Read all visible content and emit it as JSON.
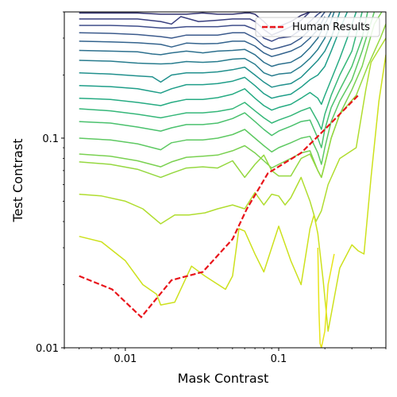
{
  "chart_data": {
    "type": "line",
    "title": "",
    "xlabel": "Mask Contrast",
    "ylabel": "Test Contrast",
    "xscale": "log",
    "yscale": "log",
    "xlim": [
      0.004,
      0.5
    ],
    "ylim": [
      0.01,
      0.4
    ],
    "x_ticks": [
      0.01,
      0.1
    ],
    "x_tick_labels": [
      "0.01",
      "0.1"
    ],
    "y_ticks": [
      0.01,
      0.1
    ],
    "y_tick_labels": [
      "0.01",
      "0.1"
    ],
    "legend": {
      "position": "top-right",
      "entries": [
        "Human Results"
      ]
    },
    "grid": false,
    "human_results": {
      "name": "Human Results",
      "color": "#e8141a",
      "style": "dashed",
      "x": [
        0.005,
        0.0082,
        0.0127,
        0.02,
        0.032,
        0.05,
        0.062,
        0.085,
        0.14,
        0.2,
        0.33
      ],
      "y": [
        0.022,
        0.019,
        0.014,
        0.021,
        0.023,
        0.033,
        0.046,
        0.068,
        0.085,
        0.11,
        0.16
      ]
    },
    "contours": [
      {
        "color": "#30306e",
        "x": [
          0.005,
          0.008,
          0.012,
          0.017,
          0.02,
          0.025,
          0.032,
          0.04,
          0.05,
          0.06,
          0.065,
          0.07,
          0.08,
          0.09,
          0.1,
          0.12,
          0.14,
          0.16,
          0.18
        ],
        "y": [
          0.395,
          0.395,
          0.395,
          0.39,
          0.39,
          0.39,
          0.395,
          0.39,
          0.39,
          0.395,
          0.395,
          0.39,
          0.36,
          0.33,
          0.34,
          0.36,
          0.385,
          0.4,
          0.4
        ]
      },
      {
        "color": "#393f7f",
        "x": [
          0.005,
          0.008,
          0.012,
          0.017,
          0.02,
          0.023,
          0.03,
          0.04,
          0.05,
          0.06,
          0.065,
          0.07,
          0.08,
          0.09,
          0.1,
          0.12,
          0.14,
          0.16,
          0.18
        ],
        "y": [
          0.37,
          0.37,
          0.37,
          0.36,
          0.35,
          0.38,
          0.36,
          0.365,
          0.37,
          0.37,
          0.37,
          0.36,
          0.33,
          0.31,
          0.32,
          0.34,
          0.365,
          0.4,
          0.4
        ]
      },
      {
        "color": "#3e4d8a",
        "x": [
          0.005,
          0.008,
          0.012,
          0.017,
          0.02,
          0.025,
          0.032,
          0.04,
          0.05,
          0.06,
          0.07,
          0.08,
          0.09,
          0.1,
          0.12,
          0.14,
          0.16,
          0.18,
          0.19
        ],
        "y": [
          0.345,
          0.345,
          0.342,
          0.335,
          0.335,
          0.34,
          0.34,
          0.34,
          0.345,
          0.345,
          0.33,
          0.3,
          0.29,
          0.3,
          0.305,
          0.33,
          0.36,
          0.39,
          0.4
        ]
      },
      {
        "color": "#3b5a8c",
        "x": [
          0.005,
          0.008,
          0.012,
          0.017,
          0.02,
          0.025,
          0.032,
          0.04,
          0.05,
          0.06,
          0.07,
          0.08,
          0.09,
          0.1,
          0.12,
          0.14,
          0.16,
          0.18,
          0.2
        ],
        "y": [
          0.318,
          0.316,
          0.312,
          0.305,
          0.3,
          0.31,
          0.31,
          0.31,
          0.318,
          0.318,
          0.3,
          0.275,
          0.265,
          0.27,
          0.28,
          0.3,
          0.33,
          0.36,
          0.4
        ]
      },
      {
        "color": "#33638d",
        "x": [
          0.005,
          0.008,
          0.012,
          0.017,
          0.02,
          0.025,
          0.032,
          0.04,
          0.05,
          0.06,
          0.07,
          0.08,
          0.09,
          0.1,
          0.12,
          0.14,
          0.16,
          0.18,
          0.2
        ],
        "y": [
          0.29,
          0.288,
          0.285,
          0.28,
          0.272,
          0.284,
          0.282,
          0.283,
          0.29,
          0.29,
          0.275,
          0.255,
          0.245,
          0.25,
          0.26,
          0.275,
          0.3,
          0.33,
          0.38
        ]
      },
      {
        "color": "#2d708e",
        "x": [
          0.005,
          0.008,
          0.012,
          0.015,
          0.017,
          0.02,
          0.025,
          0.032,
          0.04,
          0.05,
          0.06,
          0.07,
          0.08,
          0.09,
          0.1,
          0.12,
          0.14,
          0.16,
          0.18,
          0.2,
          0.22
        ],
        "y": [
          0.262,
          0.26,
          0.258,
          0.252,
          0.25,
          0.255,
          0.26,
          0.255,
          0.26,
          0.262,
          0.265,
          0.25,
          0.23,
          0.22,
          0.225,
          0.23,
          0.245,
          0.27,
          0.3,
          0.35,
          0.4
        ]
      },
      {
        "color": "#287c8e",
        "x": [
          0.005,
          0.008,
          0.012,
          0.014,
          0.017,
          0.02,
          0.025,
          0.032,
          0.04,
          0.05,
          0.06,
          0.07,
          0.08,
          0.09,
          0.1,
          0.12,
          0.14,
          0.16,
          0.18,
          0.2,
          0.21,
          0.23
        ],
        "y": [
          0.235,
          0.233,
          0.228,
          0.227,
          0.226,
          0.227,
          0.232,
          0.23,
          0.232,
          0.238,
          0.24,
          0.225,
          0.205,
          0.198,
          0.202,
          0.205,
          0.22,
          0.24,
          0.265,
          0.3,
          0.33,
          0.4
        ]
      },
      {
        "color": "#21908d",
        "x": [
          0.005,
          0.008,
          0.012,
          0.015,
          0.017,
          0.02,
          0.025,
          0.032,
          0.04,
          0.05,
          0.06,
          0.07,
          0.08,
          0.09,
          0.1,
          0.12,
          0.14,
          0.16,
          0.18,
          0.2,
          0.22,
          0.25
        ],
        "y": [
          0.205,
          0.202,
          0.198,
          0.196,
          0.185,
          0.2,
          0.205,
          0.205,
          0.207,
          0.212,
          0.218,
          0.2,
          0.185,
          0.175,
          0.178,
          0.182,
          0.195,
          0.215,
          0.235,
          0.26,
          0.3,
          0.4
        ]
      },
      {
        "color": "#1f9e89",
        "x": [
          0.005,
          0.008,
          0.012,
          0.015,
          0.017,
          0.02,
          0.025,
          0.032,
          0.04,
          0.05,
          0.06,
          0.07,
          0.08,
          0.09,
          0.1,
          0.12,
          0.14,
          0.16,
          0.18,
          0.2,
          0.22,
          0.25,
          0.28
        ],
        "y": [
          0.178,
          0.176,
          0.172,
          0.167,
          0.164,
          0.172,
          0.18,
          0.18,
          0.182,
          0.187,
          0.195,
          0.178,
          0.163,
          0.155,
          0.158,
          0.162,
          0.175,
          0.19,
          0.2,
          0.22,
          0.26,
          0.33,
          0.4
        ]
      },
      {
        "color": "#25ab82",
        "x": [
          0.005,
          0.008,
          0.012,
          0.017,
          0.02,
          0.025,
          0.032,
          0.04,
          0.05,
          0.06,
          0.07,
          0.08,
          0.09,
          0.1,
          0.12,
          0.14,
          0.16,
          0.18,
          0.19,
          0.2,
          0.22,
          0.25,
          0.28,
          0.32
        ],
        "y": [
          0.155,
          0.153,
          0.148,
          0.143,
          0.148,
          0.153,
          0.153,
          0.156,
          0.162,
          0.172,
          0.155,
          0.143,
          0.136,
          0.14,
          0.145,
          0.155,
          0.165,
          0.155,
          0.145,
          0.16,
          0.19,
          0.24,
          0.3,
          0.4
        ]
      },
      {
        "color": "#35b779",
        "x": [
          0.005,
          0.008,
          0.012,
          0.017,
          0.02,
          0.025,
          0.032,
          0.04,
          0.05,
          0.06,
          0.07,
          0.08,
          0.09,
          0.1,
          0.12,
          0.14,
          0.16,
          0.18,
          0.19,
          0.2,
          0.22,
          0.25,
          0.3,
          0.35
        ],
        "y": [
          0.138,
          0.135,
          0.13,
          0.125,
          0.128,
          0.132,
          0.132,
          0.134,
          0.138,
          0.148,
          0.135,
          0.125,
          0.118,
          0.122,
          0.128,
          0.135,
          0.14,
          0.12,
          0.11,
          0.13,
          0.16,
          0.2,
          0.26,
          0.4
        ]
      },
      {
        "color": "#4ac16d",
        "x": [
          0.005,
          0.008,
          0.012,
          0.017,
          0.02,
          0.025,
          0.032,
          0.04,
          0.05,
          0.06,
          0.07,
          0.08,
          0.09,
          0.1,
          0.12,
          0.14,
          0.16,
          0.18,
          0.19,
          0.2,
          0.22,
          0.25,
          0.3,
          0.35,
          0.38
        ],
        "y": [
          0.12,
          0.118,
          0.113,
          0.108,
          0.112,
          0.116,
          0.116,
          0.118,
          0.124,
          0.132,
          0.12,
          0.11,
          0.103,
          0.108,
          0.114,
          0.12,
          0.122,
          0.1,
          0.09,
          0.11,
          0.14,
          0.17,
          0.22,
          0.3,
          0.4
        ]
      },
      {
        "color": "#5ec962",
        "x": [
          0.005,
          0.008,
          0.012,
          0.017,
          0.02,
          0.025,
          0.032,
          0.04,
          0.05,
          0.06,
          0.07,
          0.08,
          0.09,
          0.1,
          0.12,
          0.14,
          0.16,
          0.18,
          0.19,
          0.2,
          0.22,
          0.25,
          0.3,
          0.35,
          0.42
        ],
        "y": [
          0.1,
          0.098,
          0.094,
          0.088,
          0.095,
          0.098,
          0.098,
          0.1,
          0.104,
          0.11,
          0.1,
          0.092,
          0.086,
          0.09,
          0.095,
          0.1,
          0.102,
          0.085,
          0.075,
          0.09,
          0.12,
          0.15,
          0.19,
          0.26,
          0.4
        ]
      },
      {
        "color": "#7ad151",
        "x": [
          0.005,
          0.008,
          0.012,
          0.017,
          0.02,
          0.025,
          0.032,
          0.04,
          0.05,
          0.06,
          0.07,
          0.08,
          0.09,
          0.1,
          0.12,
          0.14,
          0.16,
          0.18,
          0.19,
          0.2,
          0.22,
          0.25,
          0.3,
          0.35,
          0.42,
          0.47
        ],
        "y": [
          0.084,
          0.082,
          0.078,
          0.073,
          0.077,
          0.081,
          0.082,
          0.083,
          0.087,
          0.092,
          0.085,
          0.078,
          0.072,
          0.075,
          0.08,
          0.085,
          0.087,
          0.07,
          0.065,
          0.075,
          0.1,
          0.13,
          0.17,
          0.22,
          0.35,
          0.4
        ]
      },
      {
        "color": "#95d840",
        "x": [
          0.005,
          0.008,
          0.012,
          0.017,
          0.02,
          0.025,
          0.032,
          0.04,
          0.05,
          0.06,
          0.07,
          0.08,
          0.09,
          0.1,
          0.12,
          0.14,
          0.16,
          0.18,
          0.19,
          0.2,
          0.22,
          0.25,
          0.32,
          0.38,
          0.46,
          0.5
        ],
        "y": [
          0.077,
          0.075,
          0.071,
          0.065,
          0.068,
          0.072,
          0.073,
          0.072,
          0.078,
          0.065,
          0.075,
          0.083,
          0.07,
          0.066,
          0.066,
          0.08,
          0.084,
          0.07,
          0.065,
          0.075,
          0.1,
          0.13,
          0.16,
          0.22,
          0.3,
          0.35
        ]
      },
      {
        "color": "#b0dd2f",
        "x": [
          0.005,
          0.007,
          0.01,
          0.013,
          0.017,
          0.021,
          0.026,
          0.033,
          0.04,
          0.05,
          0.06,
          0.07,
          0.08,
          0.09,
          0.1,
          0.11,
          0.12,
          0.14,
          0.16,
          0.175,
          0.19,
          0.21,
          0.25,
          0.32,
          0.37,
          0.4,
          0.5
        ],
        "y": [
          0.054,
          0.053,
          0.05,
          0.046,
          0.039,
          0.043,
          0.043,
          0.044,
          0.046,
          0.048,
          0.046,
          0.055,
          0.048,
          0.054,
          0.053,
          0.048,
          0.052,
          0.065,
          0.05,
          0.04,
          0.045,
          0.06,
          0.08,
          0.09,
          0.17,
          0.23,
          0.3
        ]
      },
      {
        "color": "#cde11d",
        "x": [
          0.005,
          0.007,
          0.01,
          0.013,
          0.016,
          0.017,
          0.021,
          0.027,
          0.033,
          0.045,
          0.05,
          0.055,
          0.06,
          0.07,
          0.08,
          0.09,
          0.1,
          0.12,
          0.14,
          0.16,
          0.17,
          0.18,
          0.195,
          0.21,
          0.25,
          0.3,
          0.33,
          0.36,
          0.4,
          0.45,
          0.5
        ],
        "y": [
          0.034,
          0.032,
          0.026,
          0.02,
          0.018,
          0.016,
          0.0165,
          0.0245,
          0.022,
          0.019,
          0.022,
          0.037,
          0.036,
          0.028,
          0.023,
          0.03,
          0.038,
          0.026,
          0.02,
          0.037,
          0.043,
          0.035,
          0.021,
          0.012,
          0.024,
          0.031,
          0.029,
          0.028,
          0.065,
          0.15,
          0.25
        ]
      },
      {
        "color": "#e7e419",
        "x": [
          0.18,
          0.183,
          0.186,
          0.19,
          0.2,
          0.21,
          0.23
        ],
        "y": [
          0.03,
          0.015,
          0.0105,
          0.01,
          0.012,
          0.02,
          0.028
        ]
      }
    ]
  }
}
